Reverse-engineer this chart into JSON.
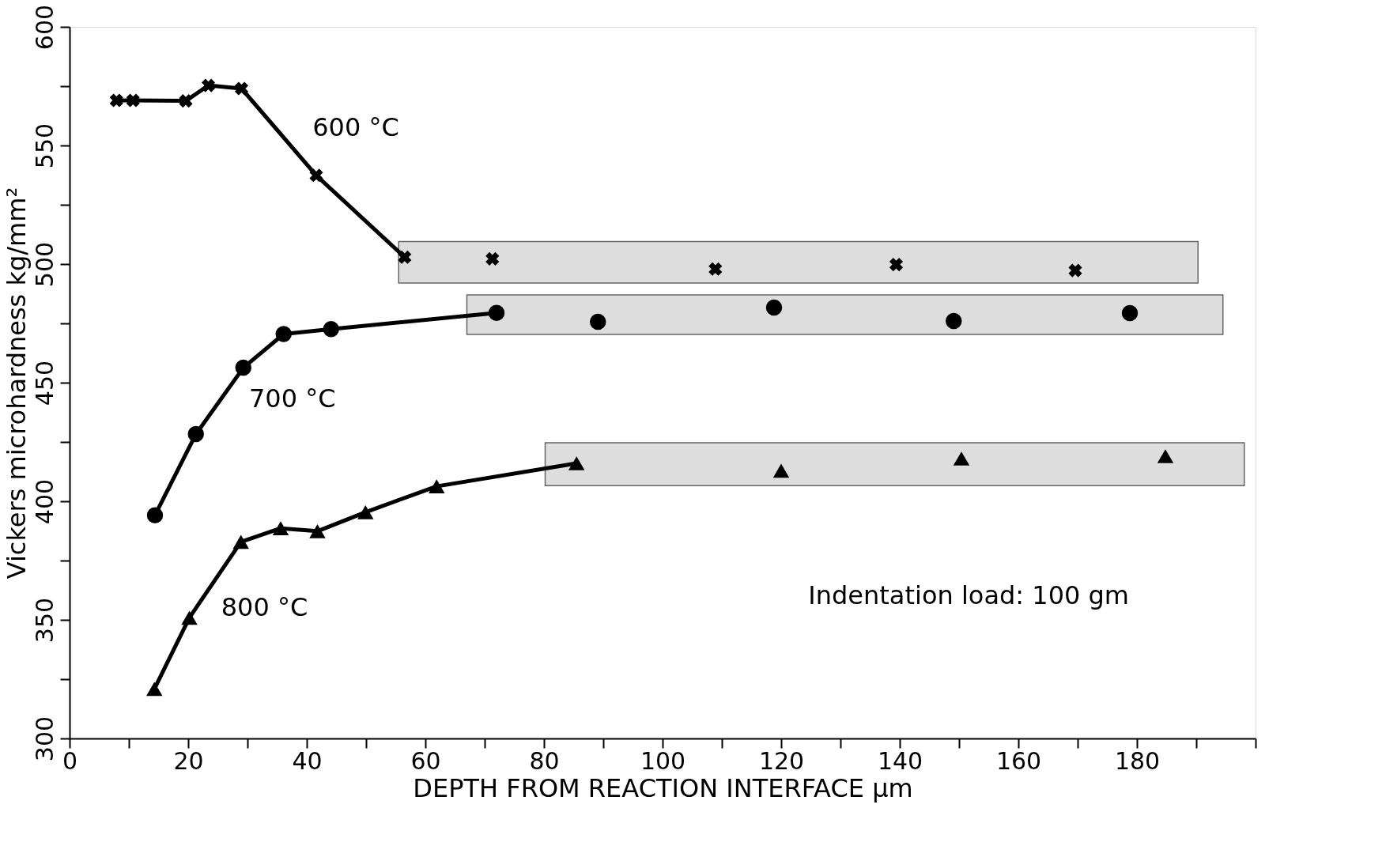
{
  "chart_data": {
    "type": "line",
    "xlabel": "DEPTH FROM REACTION INTERFACE  μm",
    "ylabel": "Vickers microhardness   kg/mm²",
    "xlim": [
      0,
      200
    ],
    "ylim": [
      300,
      600
    ],
    "xticks": [
      0,
      {
        "value": 10,
        "label": null
      },
      20,
      {
        "value": 30,
        "label": null
      },
      40,
      {
        "value": 50,
        "label": null
      },
      60,
      {
        "value": 70,
        "label": null
      },
      80,
      {
        "value": 90,
        "label": null
      },
      100,
      {
        "value": 110,
        "label": null
      },
      120,
      {
        "value": 130,
        "label": null
      },
      140,
      {
        "value": 150,
        "label": null
      },
      160,
      {
        "value": 170,
        "label": null
      },
      180,
      {
        "value": 190,
        "label": null
      },
      {
        "value": 200,
        "label": null
      }
    ],
    "yticks": [
      300,
      {
        "value": 325,
        "label": null
      },
      350,
      {
        "value": 375,
        "label": null
      },
      400,
      {
        "value": 425,
        "label": null
      },
      450,
      {
        "value": 475,
        "label": null
      },
      500,
      {
        "value": 525,
        "label": null
      },
      550,
      {
        "value": 575,
        "label": null
      },
      600
    ],
    "grid": false,
    "legend": false,
    "line_style": "solid",
    "series": [
      {
        "type": "area",
        "color": "#c8c8c8",
        "x": [
          55.5,
          190.3
        ],
        "values": [
          null,
          null
        ],
        "lower": [
          492,
          492
        ],
        "upper": [
          509.5,
          509.5
        ]
      },
      {
        "type": "area",
        "color": "#c8c8c8",
        "x": [
          67,
          194.5
        ],
        "values": [
          null,
          null
        ],
        "lower": [
          470.3,
          470.3
        ],
        "upper": [
          487,
          487
        ]
      },
      {
        "type": "area",
        "color": "#c8c8c8",
        "x": [
          80.2,
          198.1
        ],
        "values": [
          null,
          null
        ],
        "lower": [
          406.6,
          406.6
        ],
        "upper": [
          424.7,
          424.7
        ]
      },
      {
        "name": "600 °C",
        "color": "#000000",
        "marker": "cross",
        "x": [
          7.9,
          10.7,
          19.6,
          23.4,
          29.0,
          41.6,
          56.5
        ],
        "values": [
          569,
          569,
          568.8,
          575.3,
          574,
          537.4,
          502.9
        ]
      },
      {
        "type": "scatter",
        "color": "#000000",
        "marker": "cross",
        "x": [
          71.3,
          108.9,
          139.4,
          169.6
        ],
        "values": [
          502.2,
          497.9,
          499.8,
          497.3
        ]
      },
      {
        "name": "700 °C",
        "color": "#000000",
        "marker": "circle",
        "x": [
          14.4,
          21.3,
          29.3,
          36.1,
          44.1,
          72.0
        ],
        "values": [
          394.1,
          428.3,
          456.3,
          470.5,
          472.6,
          479.4
        ]
      },
      {
        "type": "scatter",
        "color": "#000000",
        "marker": "circle",
        "x": [
          89.1,
          118.8,
          149.1,
          178.8
        ],
        "values": [
          475.7,
          481.7,
          476.0,
          479.3
        ]
      },
      {
        "name": "800 °C",
        "color": "#000000",
        "marker": "triangle",
        "x": [
          14.3,
          20.2,
          28.9,
          35.6,
          41.8,
          49.9,
          61.9,
          85.5
        ],
        "values": [
          320.9,
          350.9,
          382.9,
          388.6,
          387.4,
          395.4,
          406.3,
          416.0
        ]
      },
      {
        "type": "scatter",
        "color": "#000000",
        "marker": "triangle",
        "x": [
          120.0,
          150.4,
          184.8
        ],
        "values": [
          412.9,
          418.0,
          419.0
        ]
      }
    ],
    "annotations": [
      "Indentation load:  100 gm"
    ]
  }
}
